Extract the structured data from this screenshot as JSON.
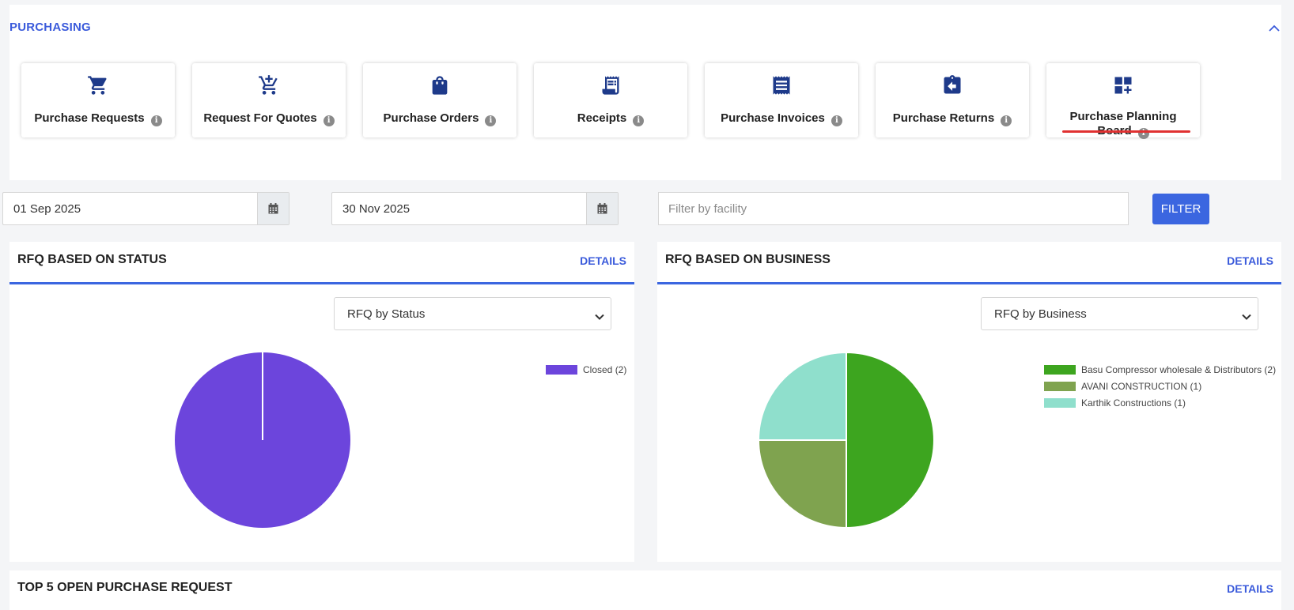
{
  "section": {
    "title": "PURCHASING"
  },
  "tiles": [
    {
      "label": "Purchase Requests",
      "icon": "cart-icon",
      "info": "i",
      "active": false
    },
    {
      "label": "Request For Quotes",
      "icon": "cart-plus-icon",
      "info": "i",
      "active": false
    },
    {
      "label": "Purchase Orders",
      "icon": "shopping-bag-icon",
      "info": "i",
      "active": false
    },
    {
      "label": "Receipts",
      "icon": "receipt-icon",
      "info": "i",
      "active": false
    },
    {
      "label": "Purchase Invoices",
      "icon": "invoice-icon",
      "info": "i",
      "active": false
    },
    {
      "label": "Purchase Returns",
      "icon": "return-clipboard-icon",
      "info": "i",
      "active": false
    },
    {
      "label_line1": "Purchase Planning",
      "label_line2": "Board",
      "icon": "dashboard-add-icon",
      "info": "i",
      "active": true
    }
  ],
  "filters": {
    "start_date": "01 Sep 2025",
    "end_date": "30 Nov 2025",
    "facility_placeholder": "Filter by facility",
    "facility_value": "",
    "filter_label": "FILTER"
  },
  "panels": {
    "status": {
      "title": "RFQ BASED ON STATUS",
      "details_label": "DETAILS",
      "select_value": "RFQ by Status"
    },
    "business": {
      "title": "RFQ BASED ON BUSINESS",
      "details_label": "DETAILS",
      "select_value": "RFQ by Business"
    },
    "top_open": {
      "title": "TOP 5 OPEN PURCHASE REQUEST",
      "details_label": "DETAILS"
    }
  },
  "colors": {
    "accent": "#3b66e0",
    "title_blue": "#3b5bdb",
    "active_bar": "#e03131",
    "icon_blue": "#1e3a8a"
  },
  "chart_data": [
    {
      "type": "pie",
      "legend_position": "top-right",
      "slices": [
        {
          "label": "Closed (2)",
          "value": 2,
          "color": "#6c45dc"
        }
      ]
    },
    {
      "type": "pie",
      "legend_position": "top-right",
      "slices": [
        {
          "label": "Basu Compressor wholesale & Distributors (2)",
          "value": 2,
          "color": "#3da51f"
        },
        {
          "label": "AVANI CONSTRUCTION (1)",
          "value": 1,
          "color": "#7fa34f"
        },
        {
          "label": "Karthik Constructions (1)",
          "value": 1,
          "color": "#8fdfcc"
        }
      ]
    }
  ]
}
